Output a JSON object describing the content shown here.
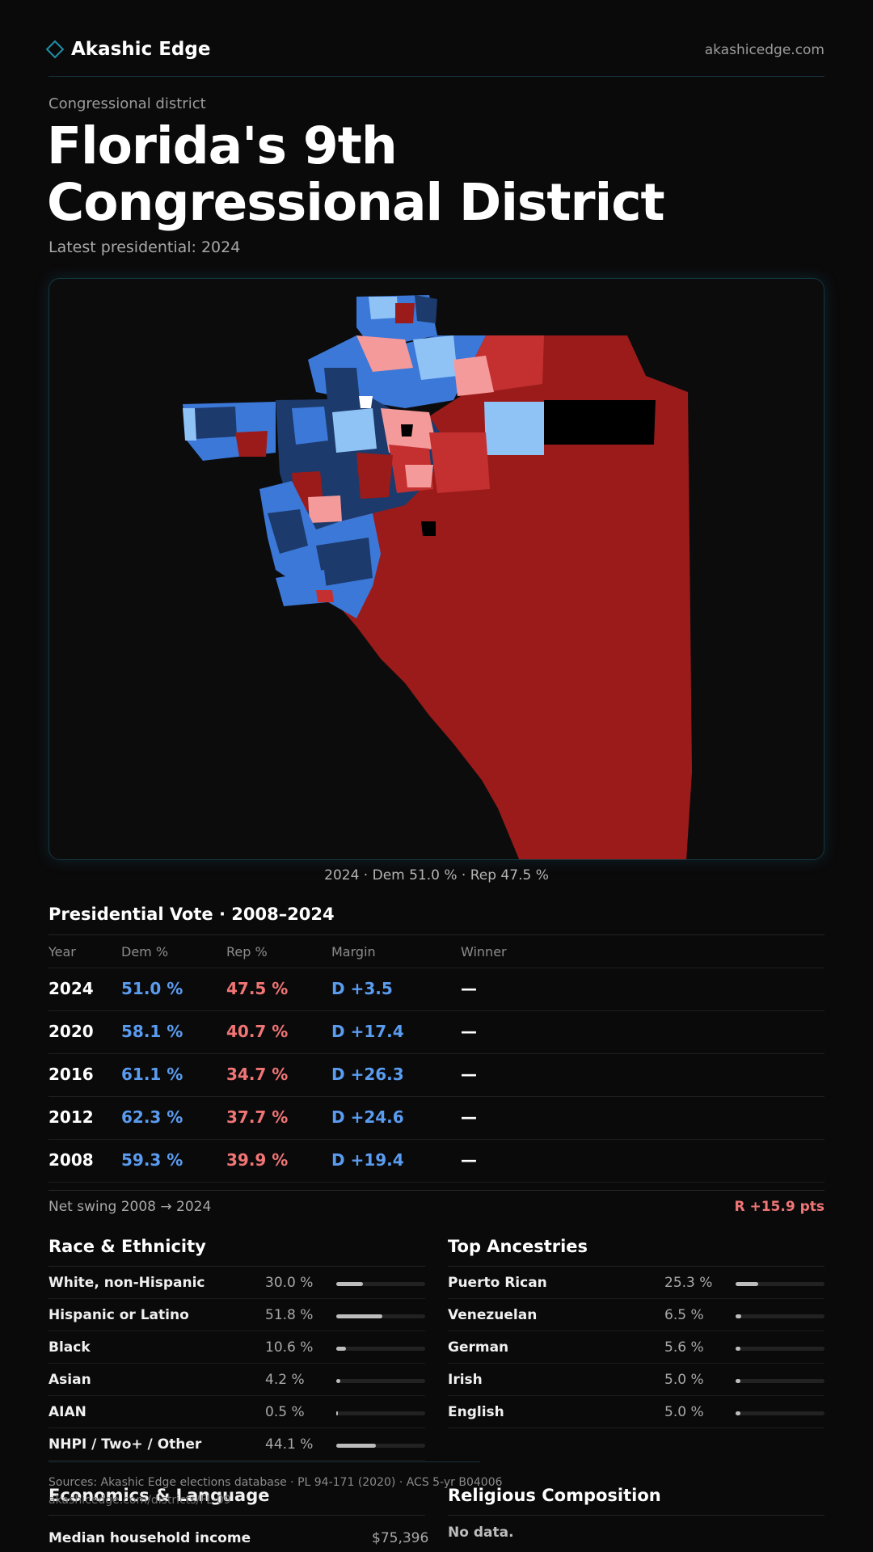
{
  "header": {
    "brand": "Akashic Edge",
    "site": "akashicedge.com",
    "logo_icon": "diamond-icon"
  },
  "page": {
    "kicker": "Congressional district",
    "title": "Florida's 9th Congressional District",
    "subtitle": "Latest presidential: 2024"
  },
  "map": {
    "caption": "2024 · Dem 51.0 % · Rep 47.5 %"
  },
  "colors": {
    "dem_dark": "#1c3a6b",
    "dem_mid": "#3b78d8",
    "dem_light": "#8fc3f5",
    "rep_dark": "#9b1b1b",
    "rep_mid": "#c43030",
    "rep_light": "#f59a9a",
    "dem_text": "#5a9cf0",
    "rep_text": "#f07575"
  },
  "presidential": {
    "title": "Presidential Vote · 2008–2024",
    "headers": {
      "year": "Year",
      "dem": "Dem %",
      "rep": "Rep %",
      "margin": "Margin",
      "winner": "Winner"
    },
    "rows": [
      {
        "year": "2024",
        "dem": "51.0 %",
        "rep": "47.5 %",
        "margin": "D +3.5",
        "winner": "—"
      },
      {
        "year": "2020",
        "dem": "58.1 %",
        "rep": "40.7 %",
        "margin": "D +17.4",
        "winner": "—"
      },
      {
        "year": "2016",
        "dem": "61.1 %",
        "rep": "34.7 %",
        "margin": "D +26.3",
        "winner": "—"
      },
      {
        "year": "2012",
        "dem": "62.3 %",
        "rep": "37.7 %",
        "margin": "D +24.6",
        "winner": "—"
      },
      {
        "year": "2008",
        "dem": "59.3 %",
        "rep": "39.9 %",
        "margin": "D +19.4",
        "winner": "—"
      }
    ],
    "swing_label": "Net swing 2008 → 2024",
    "swing_value": "R +15.9 pts"
  },
  "race": {
    "title": "Race & Ethnicity",
    "rows": [
      {
        "name": "White, non-Hispanic",
        "pct": "30.0 %",
        "value": 30.0
      },
      {
        "name": "Hispanic or Latino",
        "pct": "51.8 %",
        "value": 51.8
      },
      {
        "name": "Black",
        "pct": "10.6 %",
        "value": 10.6
      },
      {
        "name": "Asian",
        "pct": "4.2 %",
        "value": 4.2
      },
      {
        "name": "AIAN",
        "pct": "0.5 %",
        "value": 0.5
      },
      {
        "name": "NHPI / Two+ / Other",
        "pct": "44.1 %",
        "value": 44.1
      }
    ]
  },
  "ancestry": {
    "title": "Top Ancestries",
    "rows": [
      {
        "name": "Puerto Rican",
        "pct": "25.3 %",
        "value": 25.3
      },
      {
        "name": "Venezuelan",
        "pct": "6.5 %",
        "value": 6.5
      },
      {
        "name": "German",
        "pct": "5.6 %",
        "value": 5.6
      },
      {
        "name": "Irish",
        "pct": "5.0 %",
        "value": 5.0
      },
      {
        "name": "English",
        "pct": "5.0 %",
        "value": 5.0
      }
    ]
  },
  "economics": {
    "title": "Economics & Language",
    "income_label": "Median household income",
    "income_value": "$75,396"
  },
  "religion": {
    "title": "Religious Composition",
    "empty": "No data."
  },
  "footer": {
    "sources": "Sources: Akashic Edge elections database · PL 94-171 (2020) · ACS 5-yr B04006",
    "url": "akashicedge.com/districts/FL-09"
  }
}
